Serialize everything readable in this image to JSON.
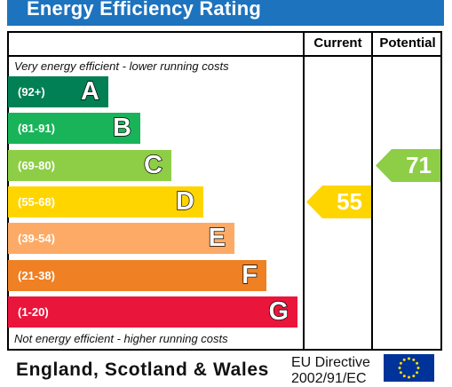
{
  "title": "Energy Efficiency Rating",
  "columns": {
    "current": "Current",
    "potential": "Potential"
  },
  "notes": {
    "top": "Very energy efficient - lower running costs",
    "bottom": "Not energy efficient - higher running costs"
  },
  "footer": {
    "region": "England, Scotland & Wales",
    "directive_line1": "EU Directive",
    "directive_line2": "2002/91/EC"
  },
  "chart_data": {
    "type": "bar",
    "categories": [
      "A",
      "B",
      "C",
      "D",
      "E",
      "F",
      "G"
    ],
    "ranges": [
      "(92+)",
      "(81-91)",
      "(69-80)",
      "(55-68)",
      "(39-54)",
      "(21-38)",
      "(1-20)"
    ],
    "colors": [
      "#008054",
      "#19b459",
      "#8dce46",
      "#ffd500",
      "#fcaa65",
      "#ef8023",
      "#e9153b"
    ],
    "current": {
      "value": 55,
      "band": "D",
      "color": "#ffd500"
    },
    "potential": {
      "value": 71,
      "band": "C",
      "color": "#8dce46"
    }
  }
}
